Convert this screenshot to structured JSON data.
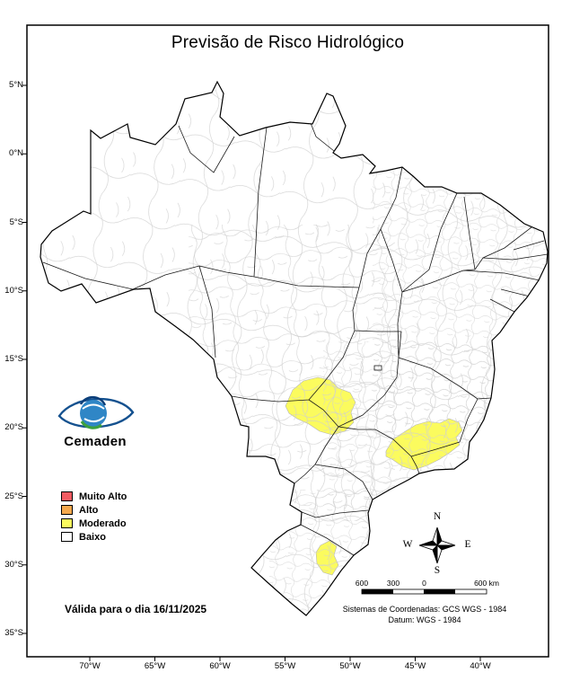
{
  "title": "Previsão de Risco Hidrológico",
  "logo": {
    "name": "Cemaden",
    "text_color": "#1c6fae"
  },
  "validity": "Válida para o dia 16/11/2025",
  "axes": {
    "latitude": [
      "5°N",
      "0°N",
      "5°S",
      "10°S",
      "15°S",
      "20°S",
      "25°S",
      "30°S",
      "35°S"
    ],
    "longitude": [
      "70°W",
      "65°W",
      "60°W",
      "55°W",
      "50°W",
      "45°W",
      "40°W"
    ]
  },
  "legend": {
    "items": [
      {
        "label": "Muito Alto",
        "color": "#f25b62"
      },
      {
        "label": "Alto",
        "color": "#f5a94e"
      },
      {
        "label": "Moderado",
        "color": "#fbfb5e"
      },
      {
        "label": "Baixo",
        "color": "#ffffff"
      }
    ]
  },
  "compass": {
    "n": "N",
    "e": "E",
    "s": "S",
    "w": "W"
  },
  "scalebar": {
    "labels": [
      "600",
      "300",
      "0",
      "600 km"
    ]
  },
  "footer": {
    "line1": "Sistemas de Coordenadas: GCS WGS - 1984",
    "line2": "Datum: WGS - 1984"
  },
  "map": {
    "country": "Brasil",
    "fill": "#ffffff",
    "state_line_color": "#1a1a1a",
    "municipal_line_color": "#cfcfcf",
    "risk_regions": [
      {
        "level": "Moderado",
        "color": "#fbfb5e",
        "points": [
          [
            318,
            452
          ],
          [
            326,
            434
          ],
          [
            338,
            424
          ],
          [
            354,
            420
          ],
          [
            368,
            423
          ],
          [
            377,
            432
          ],
          [
            390,
            437
          ],
          [
            396,
            448
          ],
          [
            391,
            459
          ],
          [
            394,
            470
          ],
          [
            384,
            480
          ],
          [
            370,
            484
          ],
          [
            356,
            480
          ],
          [
            344,
            472
          ],
          [
            331,
            466
          ],
          [
            322,
            460
          ]
        ]
      },
      {
        "level": "Moderado",
        "color": "#fbfb5e",
        "points": [
          [
            430,
            502
          ],
          [
            438,
            489
          ],
          [
            450,
            481
          ],
          [
            463,
            473
          ],
          [
            477,
            469
          ],
          [
            490,
            471
          ],
          [
            500,
            466
          ],
          [
            511,
            470
          ],
          [
            515,
            479
          ],
          [
            508,
            487
          ],
          [
            512,
            495
          ],
          [
            502,
            503
          ],
          [
            490,
            511
          ],
          [
            476,
            518
          ],
          [
            461,
            523
          ],
          [
            448,
            519
          ],
          [
            438,
            512
          ],
          [
            430,
            508
          ]
        ]
      },
      {
        "level": "Moderado",
        "color": "#fbfb5e",
        "points": [
          [
            357,
            607
          ],
          [
            367,
            602
          ],
          [
            375,
            608
          ],
          [
            372,
            618
          ],
          [
            377,
            629
          ],
          [
            370,
            640
          ],
          [
            360,
            637
          ],
          [
            353,
            627
          ],
          [
            352,
            615
          ]
        ]
      }
    ]
  }
}
